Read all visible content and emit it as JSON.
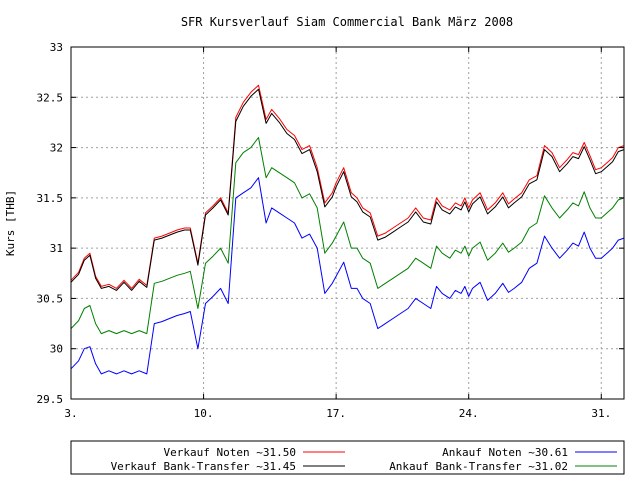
{
  "chart_data": {
    "type": "line",
    "title": "SFR Kursverlauf Siam Commercial Bank März 2008",
    "xlabel": "",
    "ylabel": "Kurs [THB]",
    "xlim": [
      3,
      32.2
    ],
    "ylim": [
      29.5,
      33
    ],
    "grid": true,
    "legend_position": "bottom",
    "x_ticks": [
      {
        "value": 3,
        "label": "3."
      },
      {
        "value": 10,
        "label": "10."
      },
      {
        "value": 17,
        "label": "17."
      },
      {
        "value": 24,
        "label": "24."
      },
      {
        "value": 31,
        "label": "31."
      }
    ],
    "y_ticks": [
      {
        "value": 29.5,
        "label": "29.5"
      },
      {
        "value": 30,
        "label": "30"
      },
      {
        "value": 30.5,
        "label": "30.5"
      },
      {
        "value": 31,
        "label": "31"
      },
      {
        "value": 31.5,
        "label": "31.5"
      },
      {
        "value": 32,
        "label": "32"
      },
      {
        "value": 32.5,
        "label": "32.5"
      },
      {
        "value": 33,
        "label": "33"
      }
    ],
    "x": [
      3.0,
      3.4,
      3.7,
      4.0,
      4.3,
      4.6,
      5.0,
      5.4,
      5.8,
      6.2,
      6.6,
      7.0,
      7.4,
      7.8,
      8.2,
      8.6,
      9.0,
      9.3,
      9.7,
      10.1,
      10.5,
      10.9,
      11.3,
      11.7,
      12.1,
      12.5,
      12.9,
      13.3,
      13.6,
      14.0,
      14.4,
      14.8,
      15.2,
      15.6,
      16.0,
      16.4,
      16.8,
      17.0,
      17.4,
      17.8,
      18.1,
      18.4,
      18.8,
      19.2,
      19.6,
      20.0,
      20.4,
      20.8,
      21.2,
      21.6,
      22.0,
      22.3,
      22.6,
      23.0,
      23.3,
      23.6,
      23.8,
      24.0,
      24.2,
      24.6,
      25.0,
      25.4,
      25.8,
      26.1,
      26.4,
      26.8,
      27.2,
      27.6,
      28.0,
      28.4,
      28.8,
      29.2,
      29.5,
      29.8,
      30.1,
      30.4,
      30.7,
      31.0,
      31.3,
      31.6,
      31.9,
      32.2
    ],
    "series": [
      {
        "name": "Verkauf Noten ~31.50",
        "color": "#ff0000",
        "values": [
          30.68,
          30.76,
          30.9,
          30.95,
          30.72,
          30.62,
          30.64,
          30.6,
          30.68,
          30.6,
          30.69,
          30.63,
          31.1,
          31.12,
          31.15,
          31.18,
          31.2,
          31.2,
          30.85,
          31.35,
          31.42,
          31.5,
          31.35,
          32.3,
          32.45,
          32.55,
          32.62,
          32.28,
          32.38,
          32.29,
          32.18,
          32.12,
          31.98,
          32.02,
          31.8,
          31.45,
          31.55,
          31.65,
          31.8,
          31.55,
          31.5,
          31.4,
          31.35,
          31.12,
          31.15,
          31.2,
          31.25,
          31.3,
          31.4,
          31.3,
          31.28,
          31.5,
          31.42,
          31.38,
          31.45,
          31.42,
          31.5,
          31.4,
          31.48,
          31.55,
          31.38,
          31.45,
          31.55,
          31.44,
          31.49,
          31.55,
          31.68,
          31.72,
          32.02,
          31.95,
          31.8,
          31.88,
          31.95,
          31.93,
          32.05,
          31.92,
          31.78,
          31.8,
          31.85,
          31.9,
          32.0,
          32.02
        ]
      },
      {
        "name": "Ankauf Noten ~30.61",
        "color": "#0000ff",
        "values": [
          29.8,
          29.88,
          30.0,
          30.02,
          29.85,
          29.75,
          29.78,
          29.75,
          29.78,
          29.75,
          29.78,
          29.75,
          30.25,
          30.27,
          30.3,
          30.33,
          30.35,
          30.37,
          30.0,
          30.45,
          30.52,
          30.6,
          30.45,
          31.5,
          31.55,
          31.6,
          31.7,
          31.25,
          31.4,
          31.35,
          31.3,
          31.25,
          31.1,
          31.14,
          31.0,
          30.55,
          30.65,
          30.72,
          30.86,
          30.6,
          30.6,
          30.5,
          30.45,
          30.2,
          30.25,
          30.3,
          30.35,
          30.4,
          30.5,
          30.45,
          30.4,
          30.62,
          30.55,
          30.5,
          30.58,
          30.55,
          30.62,
          30.52,
          30.6,
          30.66,
          30.48,
          30.55,
          30.65,
          30.56,
          30.6,
          30.66,
          30.8,
          30.85,
          31.12,
          31.0,
          30.9,
          30.98,
          31.05,
          31.02,
          31.16,
          31.0,
          30.9,
          30.9,
          30.95,
          31.0,
          31.08,
          31.1
        ]
      },
      {
        "name": "Verkauf Bank-Transfer ~31.45",
        "color": "#000000",
        "values": [
          30.66,
          30.74,
          30.88,
          30.93,
          30.7,
          30.6,
          30.62,
          30.58,
          30.66,
          30.58,
          30.67,
          30.61,
          31.08,
          31.1,
          31.13,
          31.16,
          31.18,
          31.18,
          30.83,
          31.33,
          31.4,
          31.48,
          31.33,
          32.26,
          32.41,
          32.51,
          32.58,
          32.24,
          32.34,
          32.25,
          32.14,
          32.08,
          31.94,
          31.98,
          31.76,
          31.41,
          31.51,
          31.61,
          31.76,
          31.51,
          31.46,
          31.36,
          31.31,
          31.08,
          31.11,
          31.16,
          31.21,
          31.26,
          31.36,
          31.26,
          31.24,
          31.46,
          31.38,
          31.34,
          31.41,
          31.38,
          31.46,
          31.36,
          31.44,
          31.51,
          31.34,
          31.41,
          31.51,
          31.4,
          31.45,
          31.51,
          31.64,
          31.68,
          31.98,
          31.91,
          31.76,
          31.84,
          31.91,
          31.89,
          32.01,
          31.88,
          31.74,
          31.76,
          31.81,
          31.86,
          31.96,
          31.98
        ]
      },
      {
        "name": "Ankauf Bank-Transfer ~31.02",
        "color": "#008000",
        "values": [
          30.2,
          30.28,
          30.4,
          30.43,
          30.25,
          30.15,
          30.18,
          30.15,
          30.18,
          30.15,
          30.18,
          30.15,
          30.65,
          30.67,
          30.7,
          30.73,
          30.75,
          30.77,
          30.4,
          30.85,
          30.92,
          31.0,
          30.85,
          31.85,
          31.95,
          32.0,
          32.1,
          31.7,
          31.8,
          31.75,
          31.7,
          31.65,
          31.5,
          31.54,
          31.4,
          30.95,
          31.05,
          31.12,
          31.26,
          31.0,
          31.0,
          30.9,
          30.85,
          30.6,
          30.65,
          30.7,
          30.75,
          30.8,
          30.9,
          30.85,
          30.8,
          31.02,
          30.95,
          30.9,
          30.98,
          30.95,
          31.02,
          30.92,
          31.0,
          31.06,
          30.88,
          30.95,
          31.05,
          30.96,
          31.0,
          31.06,
          31.2,
          31.25,
          31.52,
          31.4,
          31.3,
          31.38,
          31.45,
          31.42,
          31.56,
          31.4,
          31.3,
          31.3,
          31.35,
          31.4,
          31.48,
          31.5
        ]
      }
    ],
    "legend_order": [
      0,
      2,
      1,
      3
    ]
  }
}
